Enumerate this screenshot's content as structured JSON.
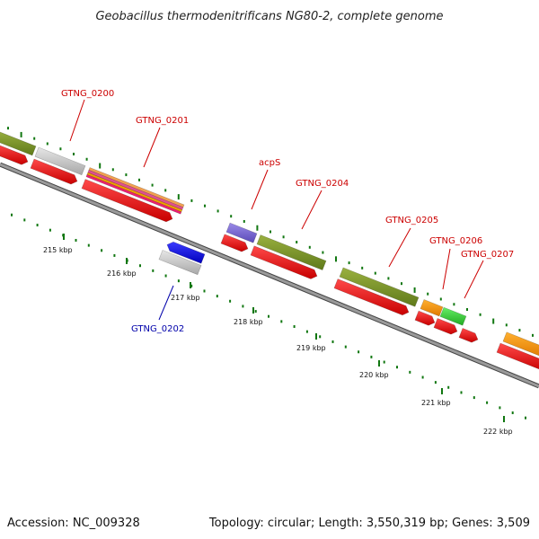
{
  "title": "Geobacillus thermodenitrificans NG80-2, complete genome",
  "footer": {
    "accession": "Accession: NC_009328",
    "summary": "Topology: circular; Length: 3,550,319 bp; Genes: 3,509"
  },
  "colors": {
    "forward_label": "#cc0000",
    "reverse_label": "#0000aa",
    "cds": "#ee0000",
    "backbone": "#777777",
    "tick": "#117711"
  },
  "scale_labels": [
    "215 kbp",
    "216 kbp",
    "217 kbp",
    "218 kbp",
    "219 kbp",
    "220 kbp",
    "221 kbp",
    "222 kbp"
  ],
  "genes": [
    {
      "name": "GTNG_0200",
      "strand": "+"
    },
    {
      "name": "GTNG_0201",
      "strand": "+"
    },
    {
      "name": "GTNG_0202",
      "strand": "-"
    },
    {
      "name": "acpS",
      "strand": "+"
    },
    {
      "name": "GTNG_0204",
      "strand": "+"
    },
    {
      "name": "GTNG_0205",
      "strand": "+"
    },
    {
      "name": "GTNG_0206",
      "strand": "+"
    },
    {
      "name": "GTNG_0207",
      "strand": "+"
    }
  ]
}
